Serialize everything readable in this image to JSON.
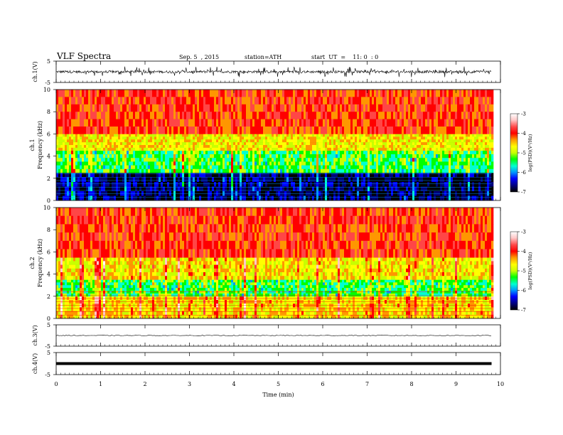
{
  "header": {
    "title": "VLF  Spectra",
    "date": "Sep. 5  , 2015",
    "station": "station=ATH",
    "start": "start  UT  =    11: 0  : 0"
  },
  "chart_data": [
    {
      "type": "line",
      "panel": "ch1-waveform",
      "ylabel": "ch.1(V)",
      "yticks": [
        "5",
        "-5"
      ],
      "ylim": [
        -5,
        5
      ],
      "xlim": [
        0,
        10
      ],
      "note_values": "noisy waveform centered near 0 V, spikes up to about ±2.5 V, data until ~9.8 min"
    },
    {
      "type": "heatmap",
      "panel": "ch1-spectrogram",
      "ylabel": "ch.1\nFrequency  (kHz)",
      "yticks": [
        "0",
        "2",
        "4",
        "6",
        "8",
        "10"
      ],
      "ylim": [
        0,
        10
      ],
      "xlim": [
        0,
        10
      ],
      "colorbar": {
        "label": "log(PSD)(V²/Hz)",
        "ticks": [
          "-3",
          "-4",
          "-5",
          "-6",
          "-7"
        ],
        "range": [
          -7,
          -3
        ]
      },
      "bands": [
        {
          "from_khz": 0,
          "to_khz": 2.5,
          "log_psd": -6.8
        },
        {
          "from_khz": 2.5,
          "to_khz": 4.5,
          "log_psd": -5.4
        },
        {
          "from_khz": 4.5,
          "to_khz": 6,
          "log_psd": -4.7
        },
        {
          "from_khz": 6,
          "to_khz": 10,
          "log_psd": -4.0
        }
      ]
    },
    {
      "type": "heatmap",
      "panel": "ch2-spectrogram",
      "ylabel": "ch.2\nFrequency  (kHz)",
      "yticks": [
        "0",
        "2",
        "4",
        "6",
        "8",
        "10"
      ],
      "ylim": [
        0,
        10
      ],
      "xlim": [
        0,
        10
      ],
      "colorbar": {
        "label": "log(PSD)(V²/Hz)",
        "ticks": [
          "-3",
          "-4",
          "-5",
          "-6",
          "-7"
        ],
        "range": [
          -7,
          -3
        ]
      },
      "bands": [
        {
          "from_khz": 0,
          "to_khz": 2,
          "log_psd": -4.6
        },
        {
          "from_khz": 2,
          "to_khz": 3.5,
          "log_psd": -5.4
        },
        {
          "from_khz": 3.5,
          "to_khz": 5.5,
          "log_psd": -4.7
        },
        {
          "from_khz": 5.5,
          "to_khz": 10,
          "log_psd": -4.0
        }
      ]
    },
    {
      "type": "line",
      "panel": "ch3-waveform",
      "ylabel": "ch.3(V)",
      "yticks": [
        "5",
        "-5"
      ],
      "ylim": [
        -5,
        5
      ],
      "xlim": [
        0,
        10
      ],
      "level_v": 0
    },
    {
      "type": "line",
      "panel": "ch4-waveform",
      "ylabel": "ch.4(V)",
      "yticks": [
        "5",
        "-5"
      ],
      "ylim": [
        -5,
        5
      ],
      "xlim": [
        0,
        10
      ],
      "level_v": 0
    }
  ],
  "x_axis": {
    "label": "Time  (min)",
    "ticks": [
      "0",
      "1",
      "2",
      "3",
      "4",
      "5",
      "6",
      "7",
      "8",
      "9",
      "10"
    ],
    "data_end_min": 9.8
  },
  "colors": {
    "colormap": [
      "#000000",
      "#00007a",
      "#0000ff",
      "#0096ff",
      "#00ffd2",
      "#00ff00",
      "#c8ff00",
      "#ffff00",
      "#ff9600",
      "#ff0000",
      "#ff4646",
      "#ffc8c8",
      "#ffffff"
    ]
  }
}
